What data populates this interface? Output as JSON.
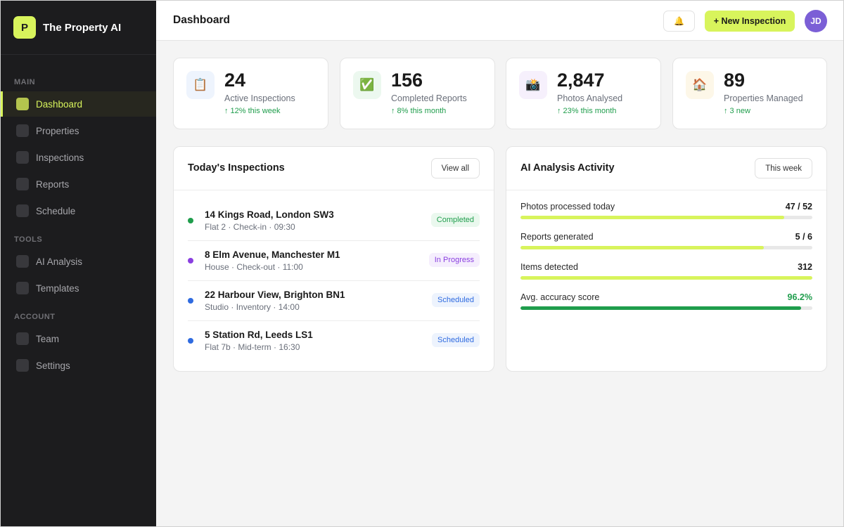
{
  "brand": {
    "logo_letter": "P",
    "name": "The Property AI",
    "accent": "#d8f45c"
  },
  "sidebar": {
    "sections": [
      {
        "label": "MAIN",
        "items": [
          {
            "label": "Dashboard",
            "active": true
          },
          {
            "label": "Properties",
            "active": false
          },
          {
            "label": "Inspections",
            "active": false
          },
          {
            "label": "Reports",
            "active": false
          },
          {
            "label": "Schedule",
            "active": false
          }
        ]
      },
      {
        "label": "TOOLS",
        "items": [
          {
            "label": "AI Analysis",
            "active": false
          },
          {
            "label": "Templates",
            "active": false
          }
        ]
      },
      {
        "label": "ACCOUNT",
        "items": [
          {
            "label": "Team",
            "active": false
          },
          {
            "label": "Settings",
            "active": false
          }
        ]
      }
    ]
  },
  "header": {
    "title": "Dashboard",
    "bell_icon": "🔔",
    "new_button": "+ New Inspection",
    "avatar_initials": "JD"
  },
  "stats": [
    {
      "icon": "📋",
      "icon_name": "clipboard-icon",
      "value": "24",
      "label": "Active Inspections",
      "trend": "↑ 12% this week",
      "icon_bg": "#eef4fd"
    },
    {
      "icon": "✅",
      "icon_name": "check-icon",
      "value": "156",
      "label": "Completed Reports",
      "trend": "↑ 8% this month",
      "icon_bg": "#ecf8ef"
    },
    {
      "icon": "📸",
      "icon_name": "camera-icon",
      "value": "2,847",
      "label": "Photos Analysed",
      "trend": "↑ 23% this month",
      "icon_bg": "#f6f0fc"
    },
    {
      "icon": "🏠",
      "icon_name": "house-icon",
      "value": "89",
      "label": "Properties Managed",
      "trend": "↑ 3 new",
      "icon_bg": "#fdf7e8"
    }
  ],
  "inspections": {
    "title": "Today's Inspections",
    "view_all": "View all",
    "rows": [
      {
        "address": "14 Kings Road, London SW3",
        "meta": "Flat 2 · Check-in · 09:30",
        "status": "Completed",
        "dot": "#1f9d4c",
        "badge_bg": "#eaf8ee",
        "badge_fg": "#1f9d4c"
      },
      {
        "address": "8 Elm Avenue, Manchester M1",
        "meta": "House · Check-out · 11:00",
        "status": "In Progress",
        "dot": "#8a3fe0",
        "badge_bg": "#f5eefd",
        "badge_fg": "#8a3fe0"
      },
      {
        "address": "22 Harbour View, Brighton BN1",
        "meta": "Studio · Inventory · 14:00",
        "status": "Scheduled",
        "dot": "#2f6be0",
        "badge_bg": "#edf3fd",
        "badge_fg": "#2f6be0"
      },
      {
        "address": "5 Station Rd, Leeds LS1",
        "meta": "Flat 7b · Mid-term · 16:30",
        "status": "Scheduled",
        "dot": "#2f6be0",
        "badge_bg": "#edf3fd",
        "badge_fg": "#2f6be0"
      }
    ]
  },
  "activity": {
    "title": "AI Analysis Activity",
    "range_button": "This week",
    "metrics": [
      {
        "label": "Photos processed today",
        "value": "47 / 52",
        "fraction": 0.904,
        "color": "#d8f45c",
        "value_color": "#1a1a1a"
      },
      {
        "label": "Reports generated",
        "value": "5 / 6",
        "fraction": 0.833,
        "color": "#d8f45c",
        "value_color": "#1a1a1a"
      },
      {
        "label": "Items detected",
        "value": "312",
        "fraction": 1.0,
        "color": "#d8f45c",
        "value_color": "#1a1a1a"
      },
      {
        "label": "Avg. accuracy score",
        "value": "96.2%",
        "fraction": 0.962,
        "color": "#1f9d4c",
        "value_color": "#1f9d4c"
      }
    ]
  }
}
